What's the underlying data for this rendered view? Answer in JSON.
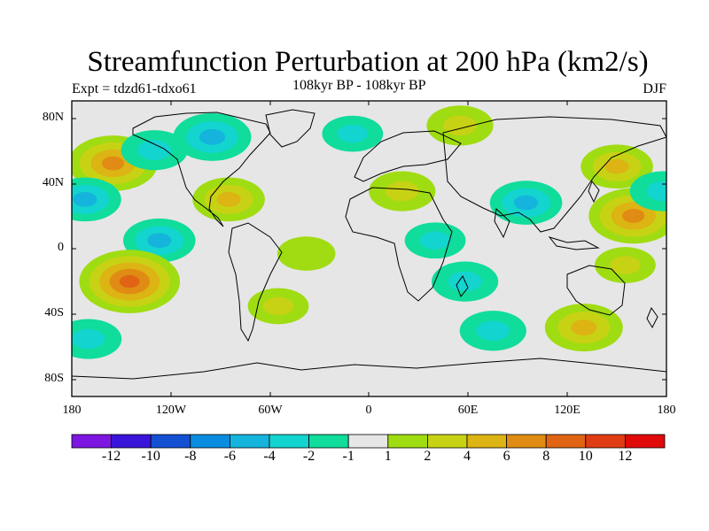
{
  "title": "Streamfunction Perturbation at 200 hPa (km2/s)",
  "left_string": "Expt = tdzd61-tdxo61",
  "center_string": "108kyr BP - 108kyr BP",
  "right_string": "DJF",
  "lat_labels": [
    "80N",
    "40N",
    "0",
    "40S",
    "80S"
  ],
  "lon_labels": [
    "180",
    "120W",
    "60W",
    "0",
    "60E",
    "120E",
    "180"
  ],
  "colorbar": {
    "labels": [
      "-12",
      "-10",
      "-8",
      "-6",
      "-4",
      "-2",
      "-1",
      "1",
      "2",
      "4",
      "6",
      "8",
      "10",
      "12"
    ],
    "colors": [
      "#7d16e0",
      "#3a14d8",
      "#1450d2",
      "#0a8ce0",
      "#14b4dc",
      "#14d4d0",
      "#10dc9c",
      "#e6e6e6",
      "#a0dc12",
      "#c8d214",
      "#dcb414",
      "#e08c14",
      "#e06414",
      "#e03c14",
      "#e00a0a"
    ]
  },
  "chart_data": {
    "type": "heatmap",
    "title": "Streamfunction Perturbation at 200 hPa (km2/s)",
    "season": "DJF",
    "experiment": "tdzd61-tdxo61",
    "levels": [
      -12,
      -10,
      -8,
      -6,
      -4,
      -2,
      -1,
      1,
      2,
      4,
      6,
      8,
      10,
      12
    ],
    "lon_range": [
      -180,
      180
    ],
    "lat_range": [
      -90,
      90
    ],
    "anomalies": [
      {
        "lon": -155,
        "lat": 52,
        "value": 7
      },
      {
        "lon": -172,
        "lat": 30,
        "value": -4
      },
      {
        "lon": -130,
        "lat": 60,
        "value": -3
      },
      {
        "lon": -95,
        "lat": 68,
        "value": -5
      },
      {
        "lon": -85,
        "lat": 30,
        "value": 4
      },
      {
        "lon": -127,
        "lat": 5,
        "value": -4
      },
      {
        "lon": -145,
        "lat": -20,
        "value": 9
      },
      {
        "lon": -170,
        "lat": -55,
        "value": -3
      },
      {
        "lon": -55,
        "lat": -35,
        "value": 2
      },
      {
        "lon": -38,
        "lat": -3,
        "value": 1.5
      },
      {
        "lon": -10,
        "lat": 70,
        "value": -2
      },
      {
        "lon": 55,
        "lat": 75,
        "value": 3
      },
      {
        "lon": 20,
        "lat": 35,
        "value": 3
      },
      {
        "lon": 95,
        "lat": 28,
        "value": -4
      },
      {
        "lon": 40,
        "lat": 5,
        "value": -2
      },
      {
        "lon": 58,
        "lat": -20,
        "value": -3
      },
      {
        "lon": 75,
        "lat": -50,
        "value": -3
      },
      {
        "lon": 150,
        "lat": 50,
        "value": 4
      },
      {
        "lon": 160,
        "lat": 20,
        "value": 7
      },
      {
        "lon": 178,
        "lat": 35,
        "value": -3
      },
      {
        "lon": 130,
        "lat": -48,
        "value": 5
      },
      {
        "lon": 155,
        "lat": -10,
        "value": 2
      }
    ]
  }
}
